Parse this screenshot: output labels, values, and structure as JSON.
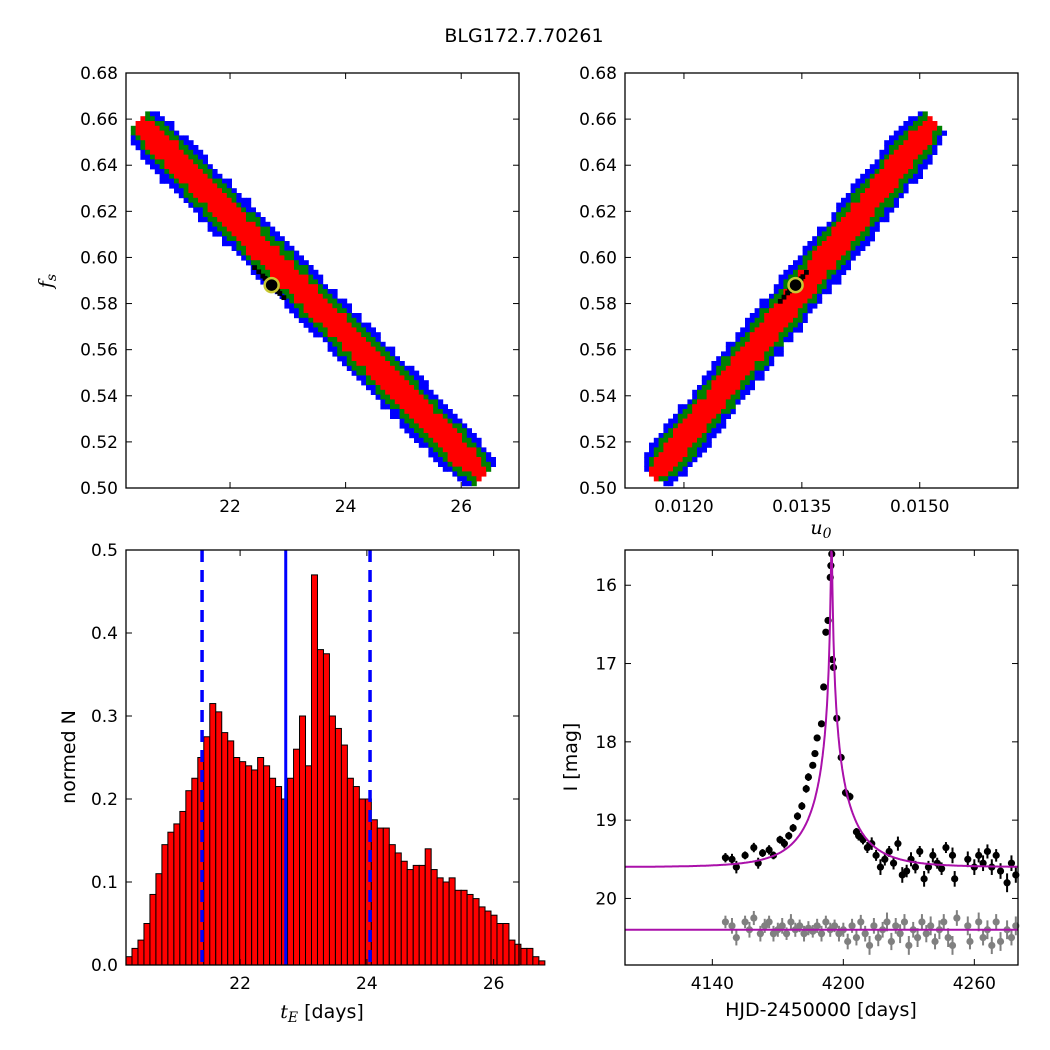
{
  "title": "BLG172.7.70261",
  "colors": {
    "sigma3": "#0000ff",
    "sigma2": "#008000",
    "sigma1": "#ff0000",
    "best": "#000000",
    "marker_edge": "#c8c832",
    "bar": "#ff0000",
    "vline": "#0000ff",
    "model": "#aa10aa",
    "data_source": "#000000",
    "data_baseline": "#808080"
  },
  "chart_data": [
    {
      "id": "fs_vs_tE",
      "type": "heatmap",
      "xlabel": "",
      "ylabel": "f_s",
      "xlim": [
        20.2,
        27.0
      ],
      "ylim": [
        0.5,
        0.68
      ],
      "xticks": [
        "22",
        "24",
        "26"
      ],
      "yticks": [
        "0.50",
        "0.52",
        "0.54",
        "0.56",
        "0.58",
        "0.60",
        "0.62",
        "0.64",
        "0.66",
        "0.68"
      ],
      "ridge": {
        "x_start": 20.45,
        "y_start": 0.658,
        "x_end": 26.35,
        "y_end": 0.506
      },
      "levels": [
        "3 sigma (blue)",
        "2 sigma (green)",
        "1 sigma (red)",
        "best (black)"
      ],
      "best_fit": {
        "x": 22.72,
        "y": 0.588
      }
    },
    {
      "id": "fs_vs_u0",
      "type": "heatmap",
      "xlabel": "u_0",
      "ylabel": "",
      "xlim": [
        0.01125,
        0.01625
      ],
      "ylim": [
        0.5,
        0.68
      ],
      "xticks": [
        "0.0120",
        "0.0135",
        "0.0150"
      ],
      "yticks": [
        "0.50",
        "0.52",
        "0.54",
        "0.56",
        "0.58",
        "0.60",
        "0.62",
        "0.64",
        "0.66",
        "0.68"
      ],
      "ridge": {
        "x_start": 0.01165,
        "y_start": 0.506,
        "x_end": 0.01515,
        "y_end": 0.658
      },
      "levels": [
        "3 sigma (blue)",
        "2 sigma (green)",
        "1 sigma (red)",
        "best (black)"
      ],
      "best_fit": {
        "x": 0.01342,
        "y": 0.588
      }
    },
    {
      "id": "tE_histogram",
      "type": "bar",
      "xlabel": "t_E  [days]",
      "ylabel": "normed N",
      "xlim": [
        20.2,
        26.4
      ],
      "ylim": [
        0.0,
        0.5
      ],
      "xticks": [
        "22",
        "24",
        "26"
      ],
      "yticks": [
        "0.0",
        "0.1",
        "0.2",
        "0.3",
        "0.4",
        "0.5"
      ],
      "bin_start": 20.2,
      "bin_width": 0.0944,
      "values": [
        0.01,
        0.02,
        0.03,
        0.05,
        0.085,
        0.11,
        0.145,
        0.16,
        0.17,
        0.185,
        0.21,
        0.225,
        0.25,
        0.275,
        0.315,
        0.305,
        0.28,
        0.27,
        0.25,
        0.245,
        0.24,
        0.235,
        0.25,
        0.24,
        0.225,
        0.215,
        0.2,
        0.225,
        0.26,
        0.3,
        0.24,
        0.47,
        0.38,
        0.375,
        0.3,
        0.285,
        0.265,
        0.225,
        0.215,
        0.2,
        0.2,
        0.175,
        0.165,
        0.165,
        0.145,
        0.135,
        0.125,
        0.115,
        0.12,
        0.12,
        0.14,
        0.115,
        0.105,
        0.1,
        0.105,
        0.09,
        0.09,
        0.085,
        0.08,
        0.07,
        0.065,
        0.06,
        0.05,
        0.05,
        0.03,
        0.025,
        0.02,
        0.02,
        0.01,
        0.005
      ],
      "best_line": 22.72,
      "bound_lines": [
        21.4,
        24.05
      ]
    },
    {
      "id": "lightcurve",
      "type": "scatter",
      "xlabel": "HJD-2450000 [days]",
      "ylabel": "I [mag]",
      "xlim": [
        4100,
        4280
      ],
      "ylim": [
        20.85,
        15.55
      ],
      "xticks": [
        "4140",
        "4200",
        "4260"
      ],
      "yticks": [
        "16",
        "17",
        "18",
        "19",
        "20"
      ],
      "model": {
        "t0": 4194.6,
        "u0": 0.0134,
        "tE": 22.72,
        "baseline": 19.6,
        "fs": 0.588
      },
      "baseline_model": 20.4,
      "source_points": [
        [
          4146,
          19.48,
          0.06
        ],
        [
          4149,
          19.5,
          0.07
        ],
        [
          4151,
          19.6,
          0.08
        ],
        [
          4155,
          19.45,
          0.05
        ],
        [
          4159,
          19.35,
          0.06
        ],
        [
          4161,
          19.55,
          0.07
        ],
        [
          4163,
          19.42,
          0.05
        ],
        [
          4166,
          19.38,
          0.06
        ],
        [
          4168,
          19.45,
          0.05
        ],
        [
          4171,
          19.25,
          0.05
        ],
        [
          4173,
          19.3,
          0.06
        ],
        [
          4175,
          19.2,
          0.05
        ],
        [
          4177,
          19.1,
          0.05
        ],
        [
          4179,
          18.95,
          0.05
        ],
        [
          4181,
          18.82,
          0.05
        ],
        [
          4183,
          18.6,
          0.05
        ],
        [
          4184,
          18.45,
          0.05
        ],
        [
          4186,
          18.3,
          0.04
        ],
        [
          4187,
          18.15,
          0.04
        ],
        [
          4188,
          17.95,
          0.04
        ],
        [
          4190,
          17.77,
          0.04
        ],
        [
          4191,
          17.3,
          0.03
        ],
        [
          4192,
          16.6,
          0.03
        ],
        [
          4193,
          16.45,
          0.03
        ],
        [
          4194,
          15.9,
          0.03
        ],
        [
          4194.3,
          15.75,
          0.03
        ],
        [
          4194.7,
          15.6,
          0.03
        ],
        [
          4195,
          16.95,
          0.03
        ],
        [
          4195.5,
          17.05,
          0.03
        ],
        [
          4197,
          17.7,
          0.04
        ],
        [
          4199,
          18.2,
          0.04
        ],
        [
          4201,
          18.65,
          0.05
        ],
        [
          4203,
          18.7,
          0.05
        ],
        [
          4206,
          19.15,
          0.05
        ],
        [
          4207,
          19.2,
          0.06
        ],
        [
          4209,
          19.25,
          0.06
        ],
        [
          4211,
          19.35,
          0.07
        ],
        [
          4213,
          19.3,
          0.08
        ],
        [
          4215,
          19.45,
          0.07
        ],
        [
          4217,
          19.6,
          0.1
        ],
        [
          4219,
          19.5,
          0.08
        ],
        [
          4221,
          19.4,
          0.07
        ],
        [
          4223,
          19.55,
          0.08
        ],
        [
          4225,
          19.3,
          0.09
        ],
        [
          4227,
          19.7,
          0.1
        ],
        [
          4229,
          19.65,
          0.08
        ],
        [
          4231,
          19.5,
          0.09
        ],
        [
          4233,
          19.6,
          0.08
        ],
        [
          4235,
          19.4,
          0.07
        ],
        [
          4237,
          19.75,
          0.1
        ],
        [
          4239,
          19.6,
          0.08
        ],
        [
          4241,
          19.45,
          0.09
        ],
        [
          4243,
          19.55,
          0.07
        ],
        [
          4245,
          19.62,
          0.08
        ],
        [
          4247,
          19.35,
          0.07
        ],
        [
          4250,
          19.45,
          0.1
        ],
        [
          4251,
          19.75,
          0.1
        ],
        [
          4257,
          19.5,
          0.1
        ],
        [
          4260,
          19.6,
          0.1
        ],
        [
          4262,
          19.45,
          0.09
        ],
        [
          4264,
          19.55,
          0.1
        ],
        [
          4266,
          19.4,
          0.09
        ],
        [
          4268,
          19.6,
          0.1
        ],
        [
          4270,
          19.45,
          0.08
        ],
        [
          4272,
          19.65,
          0.1
        ],
        [
          4275,
          19.8,
          0.12
        ],
        [
          4277,
          19.55,
          0.1
        ],
        [
          4279,
          19.7,
          0.1
        ]
      ],
      "baseline_points": [
        [
          4146,
          20.3,
          0.08
        ],
        [
          4149,
          20.35,
          0.1
        ],
        [
          4151,
          20.5,
          0.1
        ],
        [
          4155,
          20.3,
          0.08
        ],
        [
          4157,
          20.4,
          0.1
        ],
        [
          4159,
          20.25,
          0.09
        ],
        [
          4162,
          20.45,
          0.1
        ],
        [
          4164,
          20.35,
          0.09
        ],
        [
          4166,
          20.3,
          0.08
        ],
        [
          4168,
          20.45,
          0.1
        ],
        [
          4170,
          20.4,
          0.09
        ],
        [
          4172,
          20.35,
          0.1
        ],
        [
          4174,
          20.45,
          0.08
        ],
        [
          4176,
          20.3,
          0.1
        ],
        [
          4178,
          20.4,
          0.09
        ],
        [
          4180,
          20.35,
          0.08
        ],
        [
          4182,
          20.45,
          0.1
        ],
        [
          4184,
          20.38,
          0.09
        ],
        [
          4186,
          20.42,
          0.08
        ],
        [
          4188,
          20.35,
          0.09
        ],
        [
          4190,
          20.45,
          0.1
        ],
        [
          4192,
          20.3,
          0.08
        ],
        [
          4194,
          20.4,
          0.09
        ],
        [
          4196,
          20.35,
          0.08
        ],
        [
          4198,
          20.45,
          0.1
        ],
        [
          4200,
          20.4,
          0.09
        ],
        [
          4202,
          20.55,
          0.1
        ],
        [
          4204,
          20.35,
          0.09
        ],
        [
          4206,
          20.5,
          0.1
        ],
        [
          4208,
          20.3,
          0.09
        ],
        [
          4210,
          20.45,
          0.1
        ],
        [
          4212,
          20.6,
          0.12
        ],
        [
          4214,
          20.35,
          0.1
        ],
        [
          4216,
          20.5,
          0.11
        ],
        [
          4218,
          20.4,
          0.1
        ],
        [
          4220,
          20.3,
          0.12
        ],
        [
          4222,
          20.55,
          0.11
        ],
        [
          4224,
          20.35,
          0.1
        ],
        [
          4226,
          20.45,
          0.12
        ],
        [
          4228,
          20.3,
          0.1
        ],
        [
          4230,
          20.6,
          0.12
        ],
        [
          4232,
          20.4,
          0.1
        ],
        [
          4234,
          20.5,
          0.12
        ],
        [
          4236,
          20.3,
          0.1
        ],
        [
          4238,
          20.45,
          0.11
        ],
        [
          4240,
          20.35,
          0.12
        ],
        [
          4242,
          20.55,
          0.1
        ],
        [
          4244,
          20.4,
          0.12
        ],
        [
          4246,
          20.3,
          0.1
        ],
        [
          4248,
          20.5,
          0.12
        ],
        [
          4250,
          20.6,
          0.12
        ],
        [
          4252,
          20.25,
          0.1
        ],
        [
          4257,
          20.35,
          0.12
        ],
        [
          4258,
          20.55,
          0.1
        ],
        [
          4262,
          20.3,
          0.12
        ],
        [
          4264,
          20.5,
          0.1
        ],
        [
          4266,
          20.4,
          0.12
        ],
        [
          4268,
          20.6,
          0.11
        ],
        [
          4270,
          20.3,
          0.1
        ],
        [
          4272,
          20.55,
          0.12
        ],
        [
          4275,
          20.4,
          0.12
        ],
        [
          4277,
          20.5,
          0.1
        ],
        [
          4279,
          20.35,
          0.12
        ]
      ]
    }
  ]
}
